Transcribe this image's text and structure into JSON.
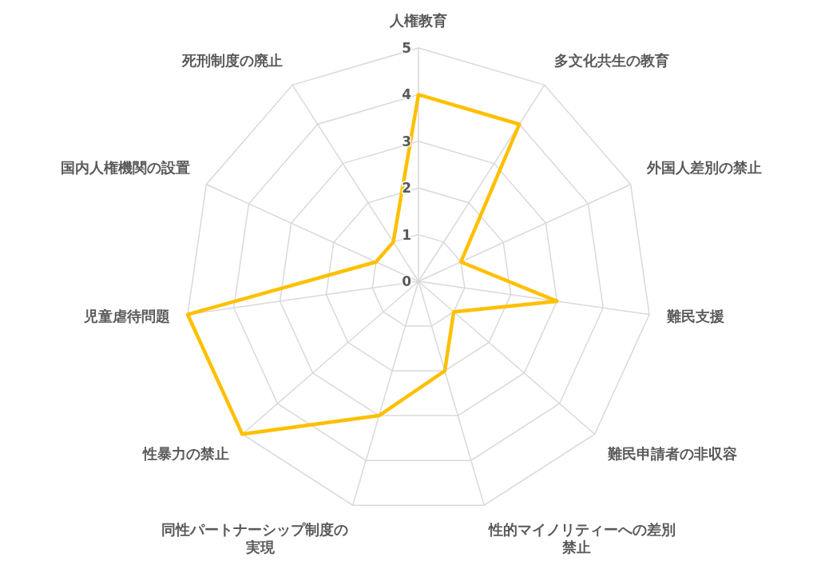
{
  "chart_data": {
    "type": "radar",
    "categories": [
      "人権教育",
      "多文化共生の教育",
      "外国人差別の禁止",
      "難民支援",
      "難民申請者の非収容",
      "性的マイノリティーへの差別禁止",
      "同性パートナーシップ制度の実現",
      "性暴力の禁止",
      "児童虐待問題",
      "国内人権機関の設置",
      "死刑制度の廃止"
    ],
    "series": [
      {
        "color": "#ffc000",
        "values": [
          4,
          4,
          1,
          3,
          1,
          2,
          3,
          5,
          5,
          1,
          1
        ]
      }
    ],
    "ylim": [
      0,
      5
    ],
    "yticks": [
      0,
      1,
      2,
      3,
      4,
      5
    ],
    "grid": true,
    "marker": "none",
    "line_style": "solid"
  }
}
